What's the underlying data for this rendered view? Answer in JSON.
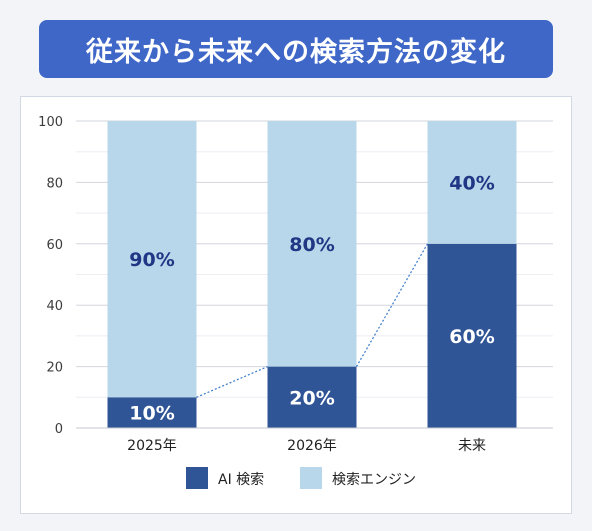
{
  "header": {
    "title": "従来から未来への検索方法の変化"
  },
  "chart_data": {
    "type": "bar",
    "stacked": true,
    "categories": [
      "2025年",
      "2026年",
      "未来"
    ],
    "series": [
      {
        "name": "AI 検索",
        "values": [
          10,
          20,
          60
        ],
        "labels": [
          "10%",
          "20%",
          "60%"
        ],
        "color": "#2f5596"
      },
      {
        "name": "検索エンジン",
        "values": [
          90,
          80,
          40
        ],
        "labels": [
          "90%",
          "80%",
          "40%"
        ],
        "color": "#b9d7ea"
      }
    ],
    "ylim": [
      0,
      100
    ],
    "yticks": [
      "0",
      "20",
      "40",
      "60",
      "80",
      "100"
    ],
    "grid": true,
    "legend_position": "bottom",
    "connector_lines": "dotted lines joining tops of AI 検索 segments",
    "colors": {
      "label_on_dark": "#ffffff",
      "label_on_light": "#1f3784",
      "connector": "#3a78c9",
      "banner": "#3f67c8"
    }
  }
}
